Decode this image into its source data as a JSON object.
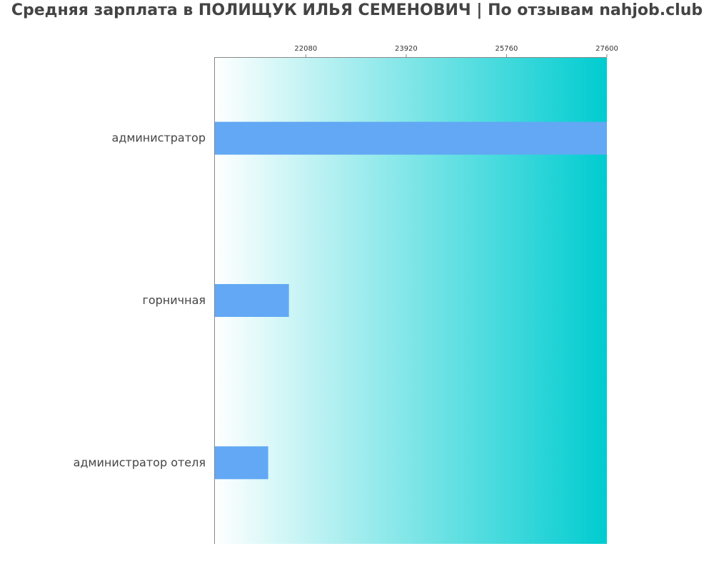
{
  "chart_data": {
    "type": "bar",
    "orientation": "horizontal",
    "title": "Средняя зарплата в ПОЛИЩУК ИЛЬЯ СЕМЕНОВИЧ | По отзывам nahjob.club",
    "categories": [
      "администратор",
      "горничная",
      "администратор отеля"
    ],
    "values": [
      27600,
      21770,
      21390
    ],
    "xlim": [
      20400,
      27600
    ],
    "x_ticks": [
      22080,
      23920,
      25760,
      27600
    ],
    "tick_position": "top",
    "grid": false,
    "colors": {
      "bar": "#62a8f4",
      "background_gradient_start": "#ffffff",
      "background_gradient_end": "#00ccd0",
      "axis": "#888888",
      "text": "#444444"
    }
  }
}
